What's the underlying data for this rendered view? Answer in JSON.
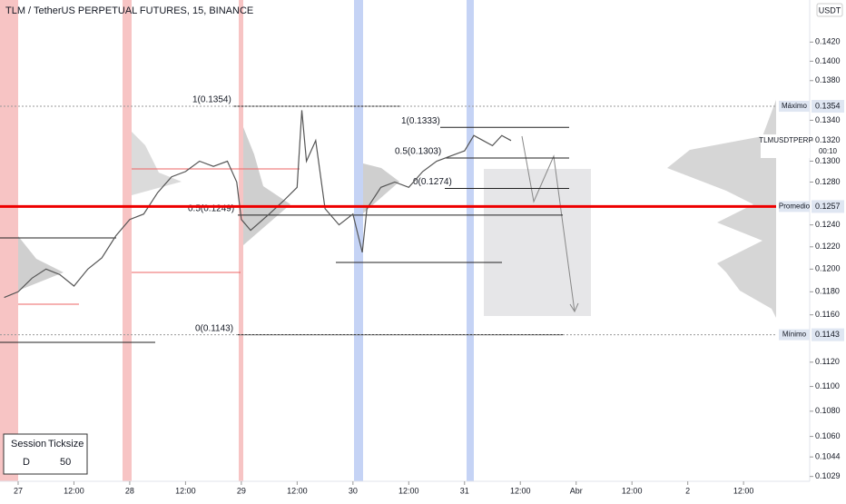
{
  "chart_data": {
    "type": "line",
    "title": "TLM / TetherUS PERPETUAL FUTURES, 15, BINANCE",
    "y_unit": "USDT",
    "log": true,
    "symbol_label": "TLMUSDTPERP",
    "countdown": "00:10",
    "xlim": [
      -3.9,
      163
    ],
    "ylim": [
      0.1026,
      0.1465
    ],
    "xticks": [
      {
        "value": 0,
        "label": "27"
      },
      {
        "value": 12,
        "label": "12:00"
      },
      {
        "value": 24,
        "label": "28"
      },
      {
        "value": 36,
        "label": "12:00"
      },
      {
        "value": 48,
        "label": "29"
      },
      {
        "value": 60,
        "label": "12:00"
      },
      {
        "value": 72,
        "label": "30"
      },
      {
        "value": 84,
        "label": "12:00"
      },
      {
        "value": 96,
        "label": "31"
      },
      {
        "value": 108,
        "label": "12:00"
      },
      {
        "value": 120,
        "label": "Abr"
      },
      {
        "value": 132,
        "label": "12:00"
      },
      {
        "value": 144,
        "label": "2"
      },
      {
        "value": 156,
        "label": "12:00"
      }
    ],
    "yticks": [
      {
        "value": 0.142,
        "label": "0.1420"
      },
      {
        "value": 0.14,
        "label": "0.1400"
      },
      {
        "value": 0.138,
        "label": "0.1380"
      },
      {
        "value": 0.134,
        "label": "0.1340"
      },
      {
        "value": 0.132,
        "label": "0.1320"
      },
      {
        "value": 0.13,
        "label": "0.1300"
      },
      {
        "value": 0.128,
        "label": "0.1280"
      },
      {
        "value": 0.124,
        "label": "0.1240"
      },
      {
        "value": 0.122,
        "label": "0.1220"
      },
      {
        "value": 0.12,
        "label": "0.1200"
      },
      {
        "value": 0.118,
        "label": "0.1180"
      },
      {
        "value": 0.116,
        "label": "0.1160"
      },
      {
        "value": 0.112,
        "label": "0.1120"
      },
      {
        "value": 0.11,
        "label": "0.1100"
      },
      {
        "value": 0.108,
        "label": "0.1080"
      },
      {
        "value": 0.106,
        "label": "0.1060"
      },
      {
        "value": 0.1044,
        "label": "0.1044"
      },
      {
        "value": 0.1029,
        "label": "0.1029"
      }
    ],
    "x": [
      -3,
      0,
      3,
      6,
      9,
      12,
      15,
      18,
      21,
      24,
      27,
      30,
      33,
      36,
      39,
      42,
      45,
      47,
      48,
      50,
      54,
      57,
      60,
      61,
      62,
      64,
      66,
      69,
      72,
      74,
      75,
      78,
      81,
      84,
      87,
      90,
      93,
      96,
      98,
      100,
      102,
      104,
      106
    ],
    "series": [
      {
        "name": "TLMUSDTPERP",
        "color": "#555555",
        "values": [
          0.1175,
          0.118,
          0.1192,
          0.12,
          0.1195,
          0.1185,
          0.12,
          0.121,
          0.123,
          0.1245,
          0.125,
          0.127,
          0.1285,
          0.129,
          0.13,
          0.1295,
          0.13,
          0.128,
          0.1245,
          0.1235,
          0.125,
          0.1262,
          0.1275,
          0.135,
          0.13,
          0.132,
          0.1255,
          0.124,
          0.125,
          0.1215,
          0.1255,
          0.1275,
          0.128,
          0.1275,
          0.129,
          0.13,
          0.1305,
          0.131,
          0.1325,
          0.132,
          0.1315,
          0.1325,
          0.132
        ]
      }
    ],
    "price_levels": [
      {
        "name": "Máximo",
        "value": 0.1354,
        "label": "0.1354"
      },
      {
        "name": "Promedio",
        "value": 0.1257,
        "label": "0.1257"
      },
      {
        "name": "Mínimo",
        "value": 0.1143,
        "label": "0.1143"
      }
    ],
    "fib_labels": [
      {
        "label": "1(0.1354)",
        "value": 0.1354
      },
      {
        "label": "1(0.1333)",
        "value": 0.1333
      },
      {
        "label": "0.5(0.1303)",
        "value": 0.1303
      },
      {
        "label": "0(0.1274)",
        "value": 0.1274
      },
      {
        "label": "0.5(0.1249)",
        "value": 0.1249
      },
      {
        "label": "0(0.1143)",
        "value": 0.1143
      }
    ],
    "settings_table": {
      "header": [
        "Session",
        "Ticksize"
      ],
      "row": [
        "D",
        50
      ]
    }
  }
}
